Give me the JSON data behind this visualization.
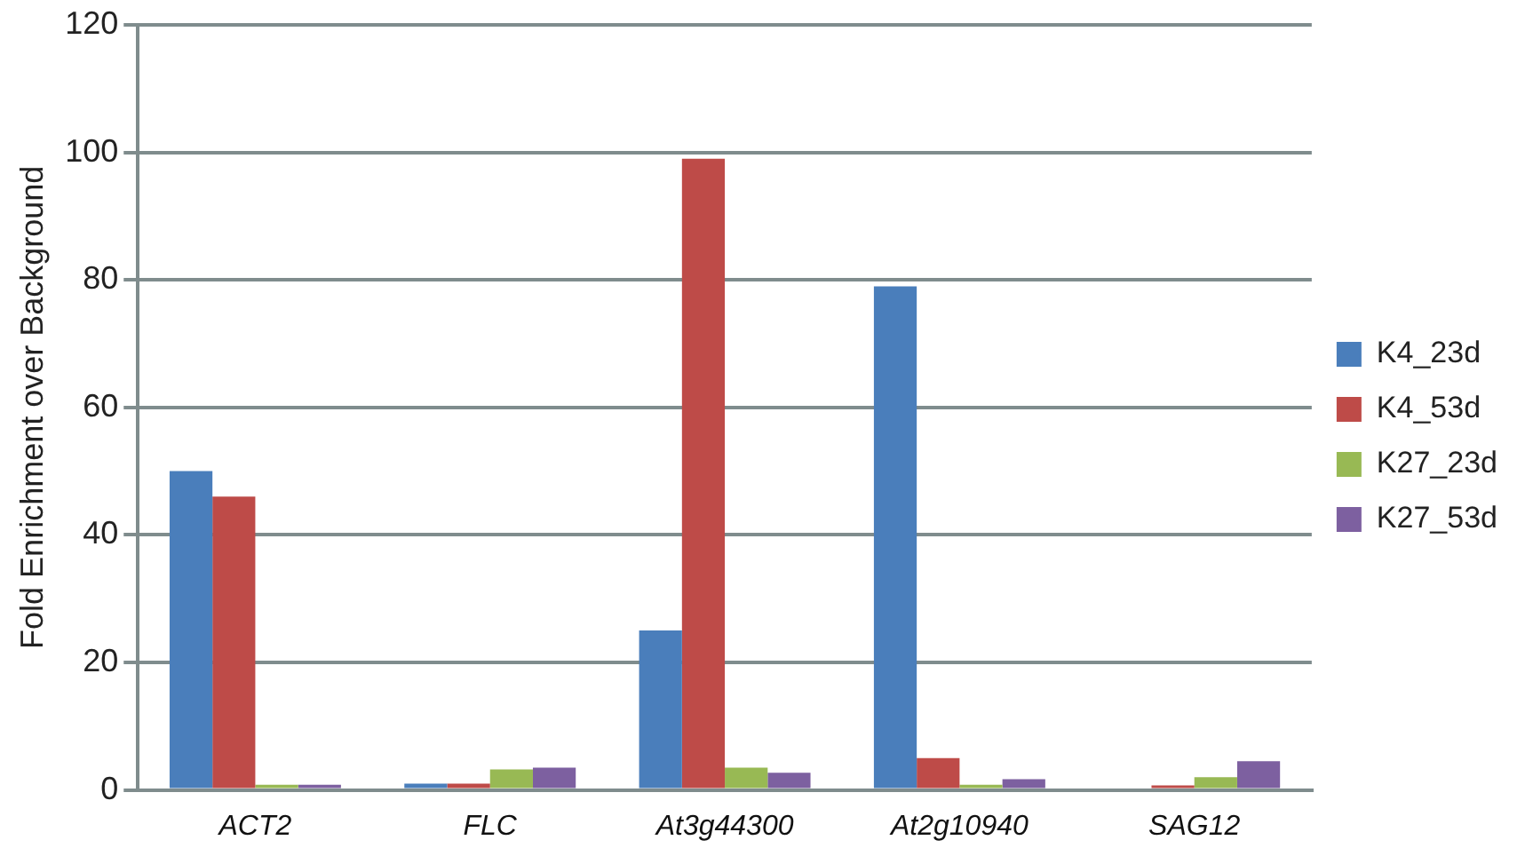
{
  "chart_data": {
    "type": "bar",
    "ylabel": "Fold Enrichment over Background",
    "categories": [
      "ACT2",
      "FLC",
      "At3g44300",
      "At2g10940",
      "SAG12"
    ],
    "series": [
      {
        "name": "K4_23d",
        "color": "#4a7ebb",
        "values": [
          50,
          1,
          25,
          79,
          0
        ]
      },
      {
        "name": "K4_53d",
        "color": "#be4b48",
        "values": [
          46,
          1,
          99,
          5,
          0.7
        ]
      },
      {
        "name": "K27_23d",
        "color": "#98b954",
        "values": [
          0.8,
          3.2,
          3.5,
          0.8,
          2
        ]
      },
      {
        "name": "K27_53d",
        "color": "#7d60a0",
        "values": [
          0.8,
          3.5,
          2.7,
          1.7,
          4.5
        ]
      }
    ],
    "ylim": [
      0,
      120
    ],
    "yticks": [
      0,
      20,
      40,
      60,
      80,
      100,
      120
    ],
    "grid": "y",
    "legend": "right"
  }
}
